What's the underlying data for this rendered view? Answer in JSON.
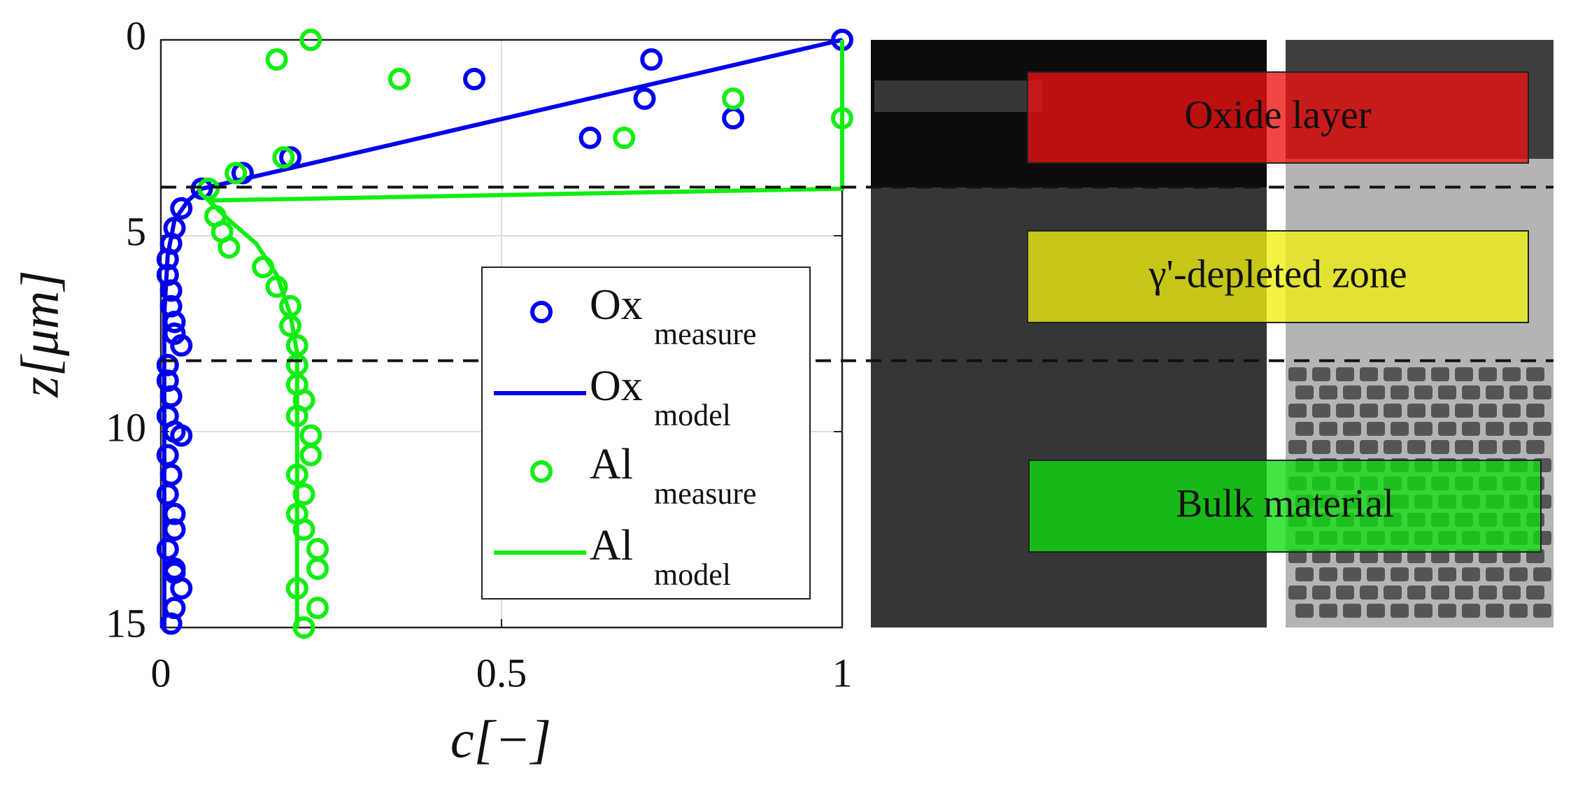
{
  "chart_data": {
    "type": "scatter_line",
    "xlabel": "c[−]",
    "ylabel": "z[μm]",
    "xlim": [
      0,
      1
    ],
    "ylim": [
      0,
      15
    ],
    "yreverse": true,
    "xticks": [
      0,
      0.5,
      1
    ],
    "yticks": [
      0,
      5,
      10,
      15
    ],
    "grid": true,
    "hlines": [
      3.76,
      8.19
    ],
    "series": [
      {
        "name": "Ox",
        "subscript": "measure",
        "kind": "markers",
        "color": "#0000ee",
        "x": [
          1,
          0.72,
          0.46,
          0.71,
          0.84,
          0.63,
          0.19,
          0.12,
          0.06,
          0.03,
          0.02,
          0.015,
          0.01,
          0.01,
          0.015,
          0.015,
          0.02,
          0.02,
          0.03,
          0.01,
          0.01,
          0.015,
          0.01,
          0.02,
          0.03,
          0.01,
          0.015,
          0.01,
          0.02,
          0.02,
          0.01,
          0.02,
          0.02,
          0.03,
          0.02,
          0.015
        ],
        "values": [
          0,
          0.5,
          1,
          1.5,
          2,
          2.5,
          3,
          3.4,
          3.8,
          4.3,
          4.8,
          5.2,
          5.6,
          6.0,
          6.4,
          6.8,
          7.2,
          7.5,
          7.8,
          8.3,
          8.7,
          9.1,
          9.6,
          10.0,
          10.1,
          10.6,
          11.1,
          11.6,
          12.1,
          12.5,
          13.0,
          13.5,
          13.6,
          14.0,
          14.5,
          14.9
        ]
      },
      {
        "name": "Ox",
        "subscript": "model",
        "kind": "line",
        "color": "#0000ee",
        "x": [
          1,
          0.06,
          0.04,
          0.02,
          0.01,
          0.005,
          0.005
        ],
        "values": [
          0,
          3.8,
          4.1,
          4.6,
          5.5,
          7,
          15
        ]
      },
      {
        "name": "Al",
        "subscript": "measure",
        "kind": "markers",
        "color": "#11ee11",
        "x": [
          0.22,
          0.17,
          0.35,
          0.84,
          1,
          0.68,
          0.18,
          0.11,
          0.07,
          0.08,
          0.09,
          0.1,
          0.15,
          0.17,
          0.19,
          0.19,
          0.2,
          0.2,
          0.2,
          0.21,
          0.2,
          0.22,
          0.22,
          0.2,
          0.21,
          0.2,
          0.21,
          0.23,
          0.23,
          0.2,
          0.23,
          0.21
        ],
        "values": [
          0,
          0.5,
          1,
          1.5,
          2,
          2.5,
          3,
          3.4,
          3.8,
          4.5,
          4.9,
          5.3,
          5.8,
          6.3,
          6.8,
          7.3,
          7.8,
          8.3,
          8.8,
          9.2,
          9.6,
          10.1,
          10.6,
          11.1,
          11.6,
          12.1,
          12.5,
          13,
          13.5,
          14,
          14.5,
          15
        ]
      },
      {
        "name": "Al",
        "subscript": "model",
        "kind": "line",
        "color": "#11ee11",
        "x": [
          1,
          1,
          0.07,
          0.1,
          0.14,
          0.17,
          0.19,
          0.2,
          0.2
        ],
        "values": [
          0,
          3.8,
          4.1,
          4.6,
          5.2,
          6,
          7,
          8,
          15
        ]
      }
    ],
    "annotations": [
      {
        "text": "Oxide layer",
        "color": "#ee1111"
      },
      {
        "text": "γ'-depleted zone",
        "color": "#eeee11"
      },
      {
        "text": "Bulk material",
        "color": "#11dd11"
      }
    ]
  }
}
